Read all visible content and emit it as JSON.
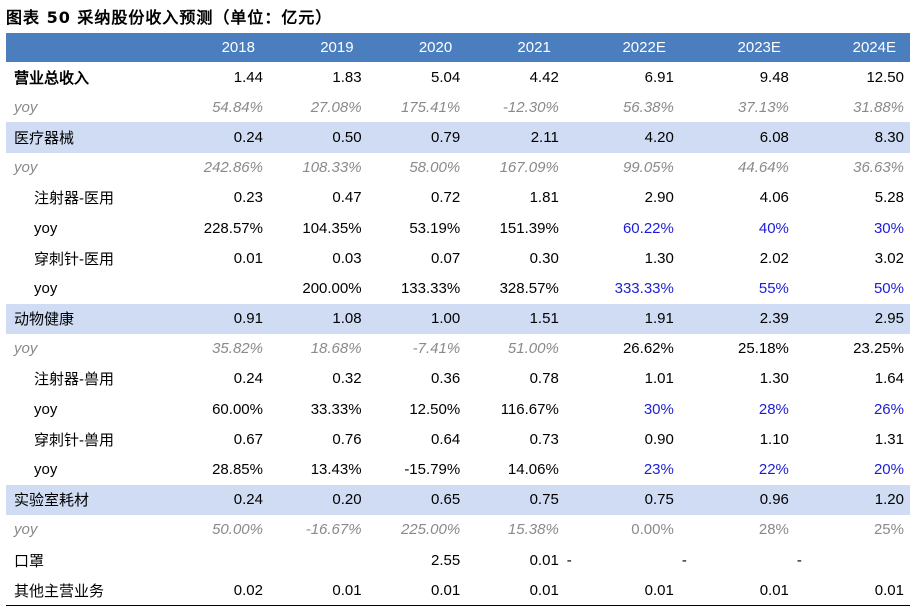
{
  "title": "图表 50 采纳股份收入预测（单位：亿元）",
  "header": [
    "",
    "2018",
    "2019",
    "2020",
    "2021",
    "2022E",
    "2023E",
    "2024E"
  ],
  "rows": [
    {
      "label": "营业总收入",
      "style": "bold",
      "cells": [
        "1.44",
        "1.83",
        "5.04",
        "4.42",
        "6.91",
        "9.48",
        "12.50"
      ]
    },
    {
      "label": "yoy",
      "style": "yoy-it",
      "cells": [
        "54.84%",
        "27.08%",
        "175.41%",
        "-12.30%",
        "56.38%",
        "37.13%",
        "31.88%"
      ]
    },
    {
      "label": "医疗器械",
      "style": "blue",
      "cells": [
        "0.24",
        "0.50",
        "0.79",
        "2.11",
        "4.20",
        "6.08",
        "8.30"
      ]
    },
    {
      "label": "yoy",
      "style": "yoy-it",
      "cells": [
        "242.86%",
        "108.33%",
        "58.00%",
        "167.09%",
        "99.05%",
        "44.64%",
        "36.63%"
      ]
    },
    {
      "label": "注射器-医用",
      "style": "sub",
      "cells": [
        "0.23",
        "0.47",
        "0.72",
        "1.81",
        "2.90",
        "4.06",
        "5.28"
      ]
    },
    {
      "label": "yoy",
      "style": "subyoy",
      "cells": [
        "228.57%",
        "104.35%",
        "53.19%",
        "151.39%",
        "60.22%",
        "40%",
        "30%"
      ],
      "forecast_blue": true
    },
    {
      "label": "穿刺针-医用",
      "style": "sub",
      "cells": [
        "0.01",
        "0.03",
        "0.07",
        "0.30",
        "1.30",
        "2.02",
        "3.02"
      ]
    },
    {
      "label": "yoy",
      "style": "subyoy",
      "cells": [
        "",
        "200.00%",
        "133.33%",
        "328.57%",
        "333.33%",
        "55%",
        "50%"
      ],
      "forecast_blue": true
    },
    {
      "label": "动物健康",
      "style": "blue",
      "cells": [
        "0.91",
        "1.08",
        "1.00",
        "1.51",
        "1.91",
        "2.39",
        "2.95"
      ]
    },
    {
      "label": "yoy",
      "style": "yoy-it-hist",
      "cells": [
        "35.82%",
        "18.68%",
        "-7.41%",
        "51.00%",
        "26.62%",
        "25.18%",
        "23.25%"
      ]
    },
    {
      "label": "注射器-兽用",
      "style": "sub",
      "cells": [
        "0.24",
        "0.32",
        "0.36",
        "0.78",
        "1.01",
        "1.30",
        "1.64"
      ]
    },
    {
      "label": "yoy",
      "style": "subyoy",
      "cells": [
        "60.00%",
        "33.33%",
        "12.50%",
        "116.67%",
        "30%",
        "28%",
        "26%"
      ],
      "forecast_blue": true
    },
    {
      "label": "穿刺针-兽用",
      "style": "sub",
      "cells": [
        "0.67",
        "0.76",
        "0.64",
        "0.73",
        "0.90",
        "1.10",
        "1.31"
      ]
    },
    {
      "label": "yoy",
      "style": "subyoy",
      "cells": [
        "28.85%",
        "13.43%",
        "-15.79%",
        "14.06%",
        "23%",
        "22%",
        "20%"
      ],
      "forecast_blue": true
    },
    {
      "label": "实验室耗材",
      "style": "blue",
      "cells": [
        "0.24",
        "0.20",
        "0.65",
        "0.75",
        "0.75",
        "0.96",
        "1.20"
      ]
    },
    {
      "label": "yoy",
      "style": "yoy-it-blue",
      "cells": [
        "50.00%",
        "-16.67%",
        "225.00%",
        "15.38%",
        "0.00%",
        "28%",
        "25%"
      ],
      "forecast_blue": true
    },
    {
      "label": "口罩",
      "style": "plain",
      "cells": [
        "",
        "",
        "2.55",
        "0.01",
        "-",
        "-",
        "-"
      ]
    },
    {
      "label": "其他主营业务",
      "style": "plain",
      "cells": [
        "0.02",
        "0.01",
        "0.01",
        "0.01",
        "0.01",
        "0.01",
        "0.01"
      ]
    }
  ],
  "colors": {
    "header_bg": "#4a7ebf",
    "band_bg": "#cfdcf3",
    "forecast_text": "#1d1dd6",
    "yoy_gray": "#8a8a8a"
  }
}
